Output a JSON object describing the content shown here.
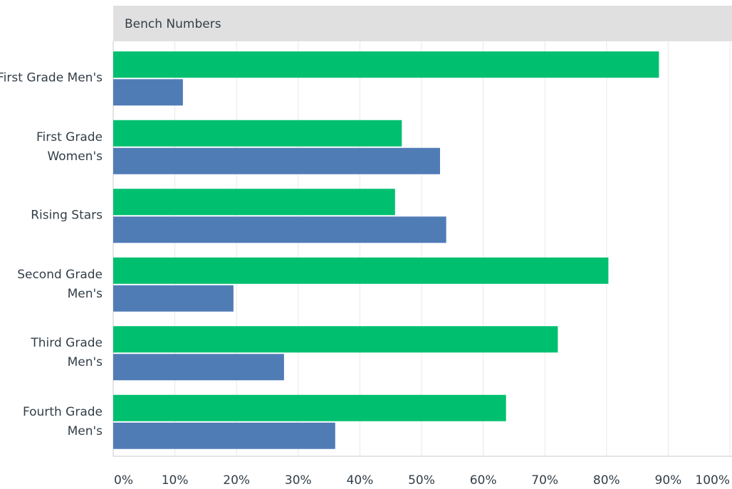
{
  "chart_data": {
    "type": "hbar",
    "title": "Bench Numbers",
    "categories": [
      "First Grade Men's",
      "First Grade Women's",
      "Rising Stars",
      "Second Grade Men's",
      "Third Grade Men's",
      "Fourth Grade Men's"
    ],
    "series": [
      {
        "color": "#00bf6f",
        "values": [
          88.5,
          46.8,
          45.7,
          80.3,
          72.1,
          63.7
        ]
      },
      {
        "color": "#507cb6",
        "values": [
          11.3,
          53.0,
          54.0,
          19.5,
          27.7,
          36.0
        ]
      }
    ],
    "xlim": [
      0,
      100
    ],
    "xticks": [
      {
        "value": 0,
        "label": "0%"
      },
      {
        "value": 10,
        "label": "10%"
      },
      {
        "value": 20,
        "label": "20%"
      },
      {
        "value": 30,
        "label": "30%"
      },
      {
        "value": 40,
        "label": "40%"
      },
      {
        "value": 50,
        "label": "50%"
      },
      {
        "value": 60,
        "label": "60%"
      },
      {
        "value": 70,
        "label": "70%"
      },
      {
        "value": 80,
        "label": "80%"
      },
      {
        "value": 90,
        "label": "90%"
      },
      {
        "value": 100,
        "label": "100%"
      }
    ],
    "grid": true
  }
}
